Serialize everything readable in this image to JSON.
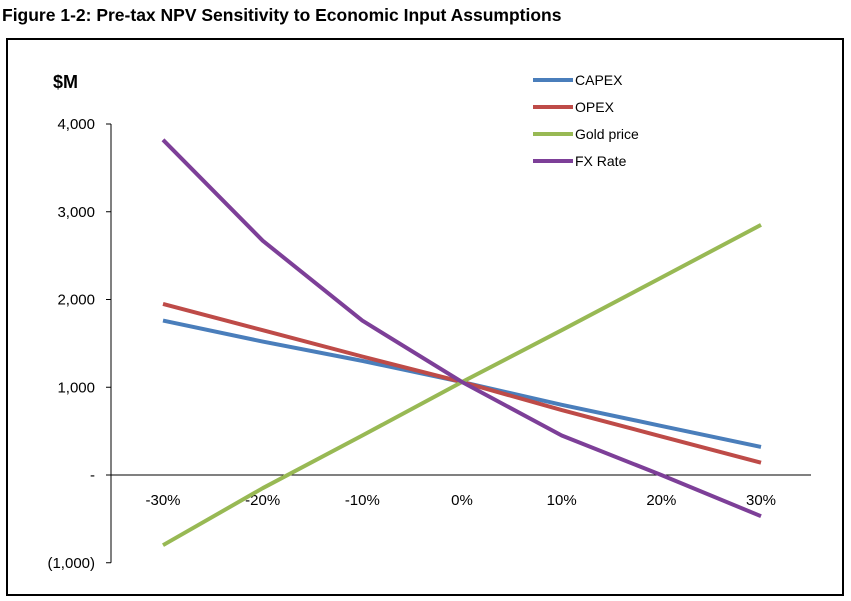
{
  "figure": {
    "title": "Figure 1-2:  Pre-tax NPV Sensitivity to Economic Input Assumptions"
  },
  "chart_data": {
    "type": "line",
    "title": "Figure 1-2:  Pre-tax NPV Sensitivity to Economic Input Assumptions",
    "ylabel": "$M",
    "xlabel": "",
    "x": [
      -30,
      -20,
      -10,
      0,
      10,
      20,
      30
    ],
    "x_tick_labels": [
      "-30%",
      "-20%",
      "-10%",
      "0%",
      "10%",
      "20%",
      "30%"
    ],
    "y_ticks": [
      -1000,
      0,
      1000,
      2000,
      3000,
      4000
    ],
    "y_tick_labels": [
      "(1,000)",
      "-",
      "1,000",
      "2,000",
      "3,000",
      "4,000"
    ],
    "ylim": [
      -1000,
      4000
    ],
    "grid": false,
    "legend_position": "top-right",
    "series": [
      {
        "name": "CAPEX",
        "color": "#4A7EBB",
        "values": [
          1760,
          1520,
          1300,
          1060,
          800,
          560,
          320
        ]
      },
      {
        "name": "OPEX",
        "color": "#BE4B48",
        "values": [
          1950,
          1650,
          1350,
          1060,
          740,
          440,
          140
        ]
      },
      {
        "name": "Gold price",
        "color": "#98B954",
        "values": [
          -800,
          -150,
          450,
          1060,
          1650,
          2250,
          2850
        ]
      },
      {
        "name": "FX Rate",
        "color": "#7D3F98",
        "values": [
          3820,
          2670,
          1760,
          1060,
          450,
          0,
          -470
        ]
      }
    ]
  }
}
